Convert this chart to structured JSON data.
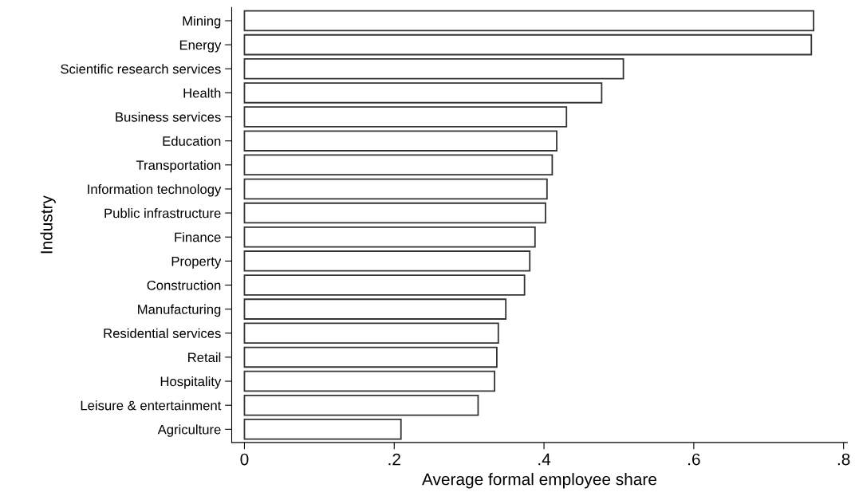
{
  "chart_data": {
    "type": "bar",
    "orientation": "horizontal",
    "xlabel": "Average formal employee share",
    "ylabel": "Industry",
    "categories": [
      "Mining",
      "Energy",
      "Scientific research services",
      "Health",
      "Business services",
      "Education",
      "Transportation",
      "Information technology",
      "Public infrastructure",
      "Finance",
      "Property",
      "Construction",
      "Manufacturing",
      "Residential services",
      "Retail",
      "Hospitality",
      "Leisure & entertainment",
      "Agriculture"
    ],
    "values": [
      0.76,
      0.757,
      0.506,
      0.477,
      0.43,
      0.417,
      0.411,
      0.404,
      0.402,
      0.388,
      0.381,
      0.374,
      0.349,
      0.339,
      0.337,
      0.334,
      0.312,
      0.209
    ],
    "color": "#ffffff",
    "xlim": [
      -0.017,
      0.805
    ],
    "xticks": [
      {
        "value": 0,
        "label": "0"
      },
      {
        "value": 0.2,
        "label": ".2"
      },
      {
        "value": 0.4,
        "label": ".4"
      },
      {
        "value": 0.6,
        "label": ".6"
      },
      {
        "value": 0.8,
        "label": ".8"
      }
    ],
    "grid": false,
    "legend": false
  }
}
